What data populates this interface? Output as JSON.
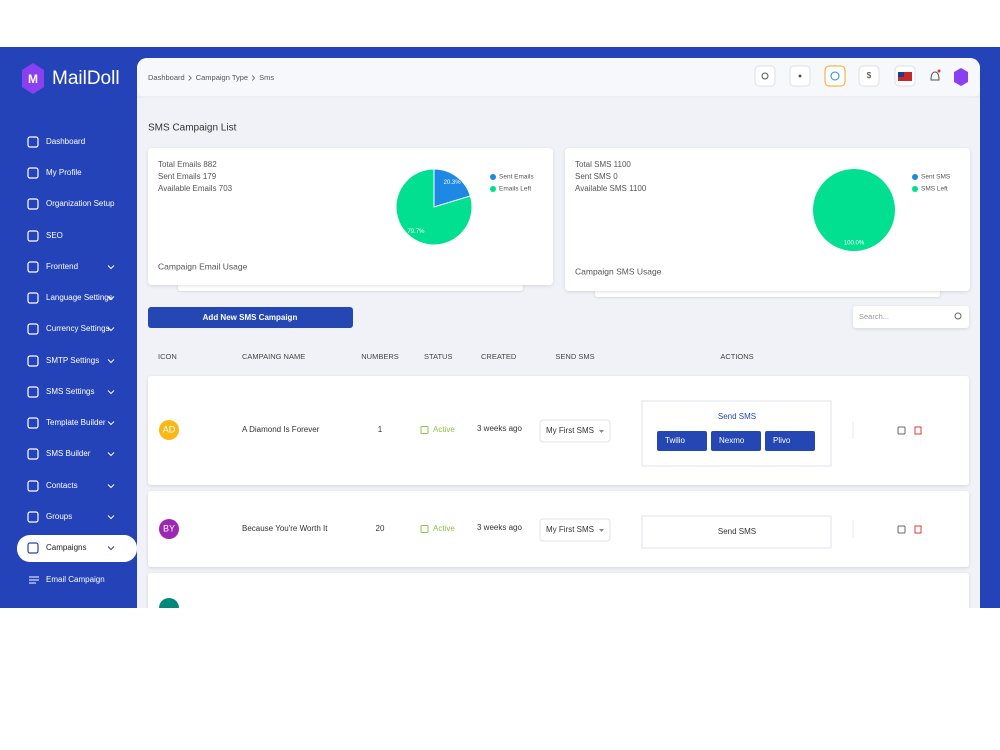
{
  "brand": "MailDoll",
  "sidebar": {
    "items": [
      "Dashboard",
      "My Profile",
      "Organization Setup",
      "SEO",
      "Frontend",
      "Language Settings",
      "Currency Settings",
      "SMTP Settings",
      "SMS Settings",
      "Template Builder",
      "SMS Builder",
      "Contacts",
      "Groups",
      "Campaigns"
    ],
    "active": 13,
    "subitems": [
      "Email Campaign"
    ]
  },
  "breadcrumb": [
    "Dashboard",
    "Campaign Type",
    "Sms"
  ],
  "header": {
    "currency": "$"
  },
  "page_title": "SMS Campaign List",
  "cards": [
    {
      "stats": [
        "Total Emails 882",
        "Sent Emails 179",
        "Available Emails 703"
      ],
      "footer": "Campaign Email Usage",
      "chart_data": {
        "type": "pie",
        "series": [
          {
            "name": "Sent Emails",
            "color": "#1e88e5"
          },
          {
            "name": "Emails Left",
            "color": "#00e090"
          }
        ],
        "values": [
          20.3,
          79.7
        ],
        "value_labels": [
          "20.3%",
          "79.7%"
        ]
      }
    },
    {
      "stats": [
        "Total SMS 1100",
        "Sent SMS 0",
        "Available SMS 1100"
      ],
      "footer": "Campaign SMS Usage",
      "chart_data": {
        "type": "pie",
        "series": [
          {
            "name": "Sent SMS",
            "color": "#1e88e5"
          },
          {
            "name": "SMS Left",
            "color": "#00e090"
          }
        ],
        "values": [
          0,
          100
        ],
        "value_labels": [
          null,
          "100.0%"
        ]
      }
    }
  ],
  "add_button": "Add New SMS Campaign",
  "search_placeholder": "Search...",
  "table": {
    "headers": [
      "ICON",
      "CAMPAING NAME",
      "NUMBERS",
      "STATUS",
      "CREATED",
      "SEND SMS",
      "ACTIONS"
    ],
    "rows": [
      {
        "avatar": "AD",
        "avatar_color": "#f9b815",
        "name": "A Diamond Is Forever",
        "numbers": 1,
        "status": "Active",
        "created": "3 weeks ago",
        "send_sms": "My First SMS",
        "actions": {
          "title": "Send SMS",
          "buttons": [
            "Twilio",
            "Nexmo",
            "Plivo"
          ]
        }
      },
      {
        "avatar": "BY",
        "avatar_color": "#9c27b0",
        "name": "Because You're Worth It",
        "numbers": 20,
        "status": "Active",
        "created": "3 weeks ago",
        "send_sms": "My First SMS",
        "actions": {
          "title": "Send SMS"
        }
      }
    ]
  }
}
